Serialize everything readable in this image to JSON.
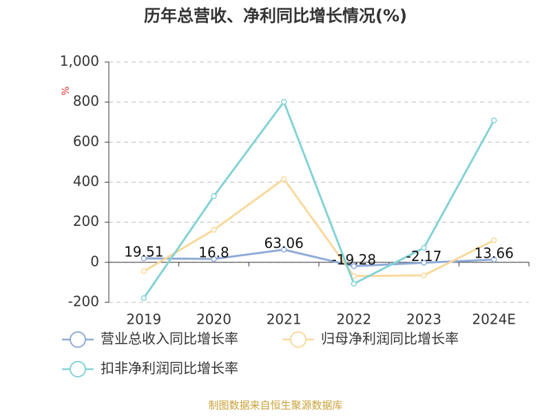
{
  "chart_data": {
    "type": "line",
    "title": "历年总营收、净利同比增长情况(%)",
    "y_label": "%",
    "categories": [
      "2019",
      "2020",
      "2021",
      "2022",
      "2023",
      "2024E"
    ],
    "series": [
      {
        "name": "营业总收入同比增长率",
        "color": "#8eaad8",
        "show_labels": true,
        "values": [
          19.51,
          16.8,
          63.06,
          -19.28,
          -2.17,
          13.66
        ]
      },
      {
        "name": "归母净利润同比增长率",
        "color": "#f9d99b",
        "show_labels": false,
        "values": [
          -45,
          162,
          416,
          -69,
          -65,
          110
        ]
      },
      {
        "name": "扣非净利润同比增长率",
        "color": "#84d2d6",
        "show_labels": false,
        "values": [
          -179,
          330,
          801,
          -107,
          72,
          708
        ]
      }
    ],
    "ylim": [
      -200,
      1000
    ],
    "yticks": [
      -200,
      0,
      200,
      400,
      600,
      800,
      {
        "value": 1000,
        "label": "1,000"
      }
    ],
    "grid": true,
    "source": "制图数据来自恒生聚源数据库"
  }
}
